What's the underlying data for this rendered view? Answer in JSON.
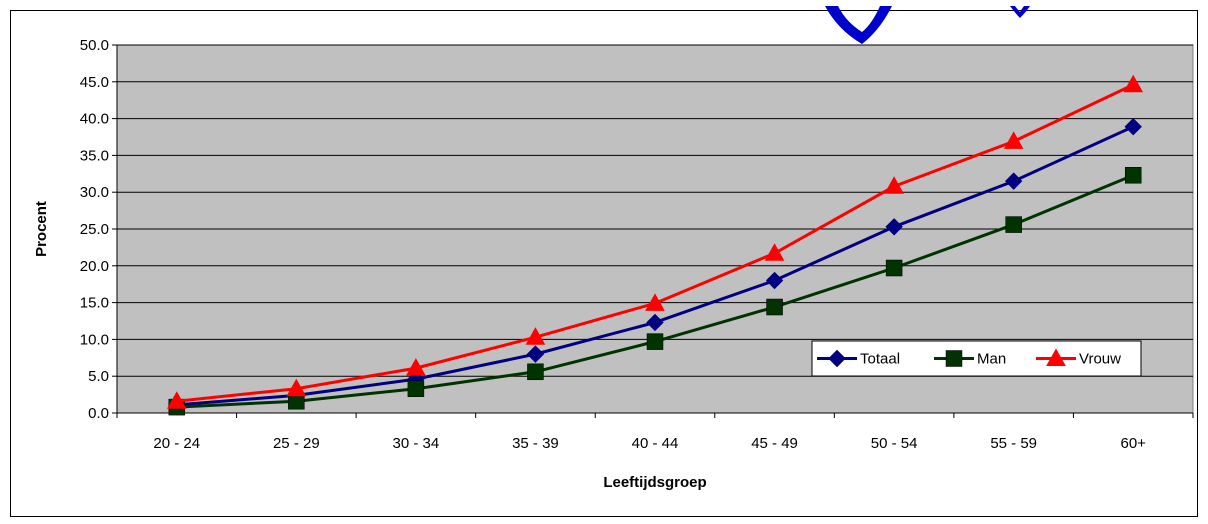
{
  "chart_data": {
    "type": "line",
    "title": "",
    "xlabel": "Leeftijdsgroep",
    "ylabel": "Procent",
    "categories": [
      "20 - 24",
      "25 - 29",
      "30 - 34",
      "35 - 39",
      "40 - 44",
      "45 - 49",
      "50 - 54",
      "55 - 59",
      "60+"
    ],
    "ylim": [
      0,
      50
    ],
    "yticks": [
      "0.0",
      "5.0",
      "10.0",
      "15.0",
      "20.0",
      "25.0",
      "30.0",
      "35.0",
      "40.0",
      "45.0",
      "50.0"
    ],
    "grid": true,
    "legend_position": "bottom-right inside plot",
    "plot_background": "#c0c0c0",
    "series": [
      {
        "name": "Totaal",
        "color": "#000080",
        "marker": "diamond",
        "values": [
          1.1,
          2.4,
          4.6,
          8.0,
          12.3,
          18.0,
          25.3,
          31.5,
          38.9
        ]
      },
      {
        "name": "Man",
        "color": "#003300",
        "marker": "square",
        "values": [
          0.8,
          1.6,
          3.3,
          5.6,
          9.7,
          14.4,
          19.7,
          25.6,
          32.3
        ]
      },
      {
        "name": "Vrouw",
        "color": "#ff0000",
        "marker": "triangle",
        "values": [
          1.6,
          3.3,
          6.1,
          10.3,
          14.9,
          21.7,
          30.8,
          36.9,
          44.6
        ]
      }
    ]
  }
}
